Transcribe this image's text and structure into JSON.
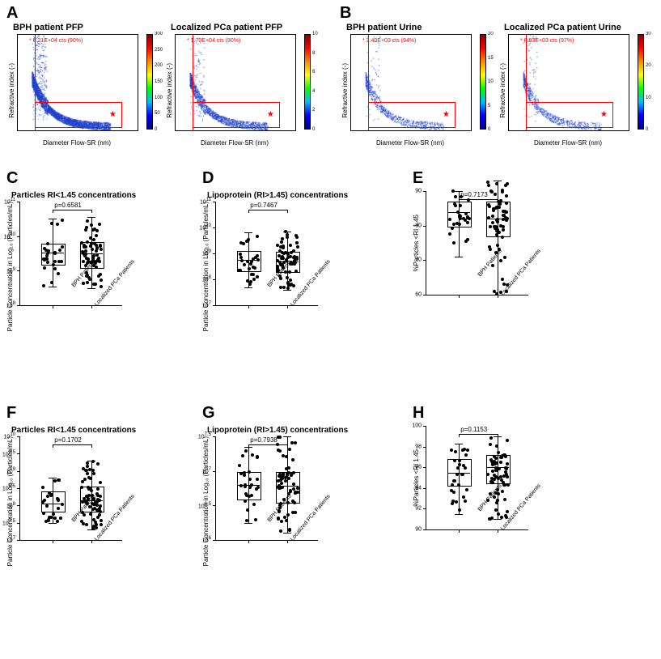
{
  "panelLabels": {
    "A": "A",
    "B": "B",
    "C": "C",
    "D": "D",
    "E": "E",
    "F": "F",
    "G": "G",
    "H": "H"
  },
  "scatter": {
    "ylab": "Refractive index (-)",
    "xlab": "Diameter Flow-SR (nm)",
    "xlim": [
      0,
      1000
    ],
    "ylim": [
      1.3,
      1.8
    ],
    "yticks": [
      1.3,
      1.4,
      1.5,
      1.6,
      1.7,
      1.8
    ],
    "xticks": [
      0,
      200,
      400,
      600,
      800,
      1000
    ],
    "gateVlineX": 140,
    "gateBox": {
      "x0": 140,
      "x1": 860,
      "y0": 1.32,
      "y1": 1.45
    },
    "starPos": {
      "x": 790,
      "y": 1.38
    },
    "colorbarGradient": [
      "#00008b",
      "#0000ff",
      "#00bfff",
      "#00ff00",
      "#ffff00",
      "#ff8c00",
      "#ff0000",
      "#8b0000"
    ],
    "plots": {
      "A1": {
        "title": "BPH patient PFP",
        "gateText": "* 6.21E+04 cts (90%)",
        "cbMax": 300,
        "cbTicks": [
          0,
          50,
          100,
          150,
          200,
          250,
          300
        ],
        "density": "high"
      },
      "A2": {
        "title": "Localized PCa patient PFP",
        "gateText": "* 1.70E+04 cts (80%)",
        "cbMax": 10,
        "cbTicks": [
          0,
          2,
          4,
          6,
          8,
          10
        ],
        "density": "mid"
      },
      "B1": {
        "title": "BPH patient Urine",
        "gateText": "* 3.40E+03 cts (94%)",
        "cbMax": 20,
        "cbTicks": [
          0,
          5,
          10,
          15,
          20
        ],
        "density": "low"
      },
      "B2": {
        "title": "Localized PCa patient Urine",
        "gateText": "* 8.83E+03 cts (97%)",
        "cbMax": 30,
        "cbTicks": [
          0,
          10,
          20,
          30
        ],
        "density": "low"
      }
    }
  },
  "xcats": [
    "BPH Patients",
    "Localized PCa Patients"
  ],
  "smallPlots": {
    "C": {
      "title": "Particles RI<1.45 concentrations",
      "ylab": "Particle Concentration in Log₁₀\n(Particles/mL)",
      "ytype": "log",
      "yticks": [
        "10^8",
        "10^9",
        "10^10",
        "10^11"
      ],
      "yvals": [
        8,
        9,
        10,
        11
      ],
      "pval": "p=0.6581",
      "groups": [
        {
          "n": 28,
          "median": 9.52,
          "q1": 9.2,
          "q3": 9.78,
          "lo": 8.55,
          "hi": 10.5
        },
        {
          "n": 70,
          "median": 9.5,
          "q1": 9.1,
          "q3": 9.82,
          "lo": 8.5,
          "hi": 10.55
        }
      ]
    },
    "D": {
      "title": "Lipoprotein (RI>1.45) concentrations",
      "ylab": "Particle Concentration in Log₁₀\n(Particles/mL)",
      "ytype": "log",
      "yticks": [
        "10^7",
        "10^8",
        "10^9",
        "10^10",
        "10^11"
      ],
      "yvals": [
        7,
        8,
        9,
        10,
        11
      ],
      "pval": "p=0.7467",
      "groups": [
        {
          "n": 28,
          "median": 8.75,
          "q1": 8.35,
          "q3": 9.1,
          "lo": 7.7,
          "hi": 9.8
        },
        {
          "n": 70,
          "median": 8.7,
          "q1": 8.3,
          "q3": 9.05,
          "lo": 7.6,
          "hi": 9.85
        }
      ]
    },
    "E": {
      "title": "",
      "ylab": "%Particles <RI 1.45",
      "ytype": "lin",
      "yticks": [
        "60",
        "70",
        "80",
        "90"
      ],
      "yvals": [
        60,
        70,
        80,
        90
      ],
      "pval": "p=0.7173",
      "groups": [
        {
          "n": 28,
          "median": 84,
          "q1": 80,
          "q3": 87,
          "lo": 71,
          "hi": 90
        },
        {
          "n": 70,
          "median": 82,
          "q1": 77,
          "q3": 87,
          "lo": 60,
          "hi": 93
        }
      ]
    },
    "F": {
      "title": "Particles RI<1.45 concentrations",
      "ylab": "Particle Concentration in Log₁₀\n(Particles/mL)",
      "ytype": "log",
      "yticks": [
        "10^7",
        "10^7.5",
        "10^8",
        "10^8.5",
        "10^9",
        "10^9.5",
        "10^10"
      ],
      "yvals": [
        7,
        7.5,
        8,
        8.5,
        9,
        9.5,
        10
      ],
      "pval": "p=0.1702",
      "groups": [
        {
          "n": 28,
          "median": 8.05,
          "q1": 7.85,
          "q3": 8.4,
          "lo": 7.5,
          "hi": 8.8
        },
        {
          "n": 70,
          "median": 8.15,
          "q1": 7.85,
          "q3": 8.55,
          "lo": 7.3,
          "hi": 9.3
        }
      ]
    },
    "G": {
      "title": "Lipoprotein (RI>1.45) concentrations",
      "ylab": "Particle Concentration in Log₁₀\n(Particles/mL)",
      "ytype": "log",
      "yticks": [
        "10^6",
        "10^6.5",
        "10^7",
        "10^7.5"
      ],
      "yvals": [
        6,
        6.5,
        7,
        7.5
      ],
      "pval": "p=0.7938",
      "groups": [
        {
          "n": 28,
          "median": 6.8,
          "q1": 6.6,
          "q3": 6.98,
          "lo": 6.25,
          "hi": 7.35
        },
        {
          "n": 70,
          "median": 6.78,
          "q1": 6.55,
          "q3": 6.98,
          "lo": 6.1,
          "hi": 7.5
        }
      ]
    },
    "H": {
      "title": "",
      "ylab": "%Particles <RI 1.45",
      "ytype": "lin",
      "yticks": [
        "90",
        "92",
        "94",
        "96",
        "98",
        "100"
      ],
      "yvals": [
        90,
        92,
        94,
        96,
        98,
        100
      ],
      "pval": "p=0.1153",
      "groups": [
        {
          "n": 28,
          "median": 95.5,
          "q1": 94.3,
          "q3": 96.8,
          "lo": 91.5,
          "hi": 98.3
        },
        {
          "n": 70,
          "median": 96.0,
          "q1": 94.5,
          "q3": 97.2,
          "lo": 91.0,
          "hi": 99.0
        }
      ]
    }
  },
  "styling": {
    "fontFamily": "Arial, Helvetica, sans-serif",
    "axisColor": "#000000",
    "gateColor": "#ff0000",
    "dotFill": "#000000",
    "boxStroke": "#000000",
    "panelLabelFontSize": 20,
    "titleFontSize": 11,
    "axisLabelFontSize": 8,
    "tickFontSize": 7,
    "scatterPointColorLow": "#1e3fca",
    "scatterPointColorMid": "#2255ee",
    "scatterPointColorHi": "#3a6cff"
  }
}
